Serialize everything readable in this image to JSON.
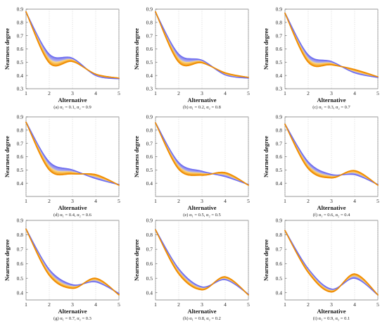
{
  "chart_data": [
    {
      "type": "line",
      "caption": "(a) α₁ = 0.1, α₂ = 0.9",
      "xlabel": "Alternative",
      "ylabel": "Nearness degree",
      "x": [
        1,
        2,
        3,
        4,
        5
      ],
      "xlim": [
        1,
        5
      ],
      "ylim": [
        0.3,
        0.9
      ],
      "yticks": [
        0.3,
        0.4,
        0.5,
        0.6,
        0.7,
        0.8,
        0.9
      ],
      "grid": true,
      "series": [
        {
          "values": [
            0.875,
            0.56,
            0.53,
            0.4,
            0.375
          ],
          "color": "#6d6df0"
        },
        {
          "values": [
            0.88,
            0.495,
            0.505,
            0.41,
            0.38
          ],
          "color": "#f08c00"
        }
      ]
    },
    {
      "type": "line",
      "caption": "(b) α₁ = 0.2, α₂ = 0.8",
      "xlabel": "Alternative",
      "ylabel": "Nearness degree",
      "x": [
        1,
        2,
        3,
        4,
        5
      ],
      "xlim": [
        1,
        5
      ],
      "ylim": [
        0.3,
        0.9
      ],
      "yticks": [
        0.3,
        0.4,
        0.5,
        0.6,
        0.7,
        0.8,
        0.9
      ],
      "grid": true,
      "series": [
        {
          "values": [
            0.875,
            0.56,
            0.515,
            0.405,
            0.38
          ],
          "color": "#6d6df0"
        },
        {
          "values": [
            0.88,
            0.5,
            0.495,
            0.42,
            0.385
          ],
          "color": "#f08c00"
        }
      ]
    },
    {
      "type": "line",
      "caption": "(c) α₁ = 0.3, α₂ = 0.7",
      "xlabel": "Alternative",
      "ylabel": "Nearness degree",
      "x": [
        1,
        2,
        3,
        4,
        5
      ],
      "xlim": [
        1,
        5
      ],
      "ylim": [
        0.3,
        0.9
      ],
      "yticks": [
        0.3,
        0.4,
        0.5,
        0.6,
        0.7,
        0.8,
        0.9
      ],
      "grid": true,
      "series": [
        {
          "values": [
            0.87,
            0.555,
            0.505,
            0.42,
            0.385
          ],
          "color": "#6d6df0"
        },
        {
          "values": [
            0.87,
            0.5,
            0.48,
            0.445,
            0.39
          ],
          "color": "#f08c00"
        }
      ]
    },
    {
      "type": "line",
      "caption": "(d) α₁ = 0.4, α₂ = 0.6",
      "xlabel": "Alternative",
      "ylabel": "Nearness degree",
      "x": [
        1,
        2,
        3,
        4,
        5
      ],
      "xlim": [
        1,
        5
      ],
      "ylim": [
        0.3,
        0.9
      ],
      "yticks": [
        0.4,
        0.5,
        0.6,
        0.7,
        0.8,
        0.9
      ],
      "grid": true,
      "series": [
        {
          "values": [
            0.86,
            0.56,
            0.5,
            0.435,
            0.39
          ],
          "color": "#6d6df0"
        },
        {
          "values": [
            0.86,
            0.5,
            0.47,
            0.465,
            0.385
          ],
          "color": "#f08c00"
        }
      ]
    },
    {
      "type": "line",
      "caption": "(e) α₁ = 0.5, α₂ = 0.5",
      "xlabel": "Alternative",
      "ylabel": "Nearness degree",
      "x": [
        1,
        2,
        3,
        4,
        5
      ],
      "xlim": [
        1,
        5
      ],
      "ylim": [
        0.3,
        0.9
      ],
      "yticks": [
        0.4,
        0.5,
        0.6,
        0.7,
        0.8,
        0.9
      ],
      "grid": true,
      "series": [
        {
          "values": [
            0.855,
            0.555,
            0.49,
            0.45,
            0.39
          ],
          "color": "#6d6df0"
        },
        {
          "values": [
            0.855,
            0.505,
            0.46,
            0.48,
            0.385
          ],
          "color": "#f08c00"
        }
      ]
    },
    {
      "type": "line",
      "caption": "(f) α₁ = 0.6, α₂ = 0.4",
      "xlabel": "Alternative",
      "ylabel": "Nearness degree",
      "x": [
        1,
        2,
        3,
        4,
        5
      ],
      "xlim": [
        1,
        5
      ],
      "ylim": [
        0.3,
        0.9
      ],
      "yticks": [
        0.4,
        0.5,
        0.6,
        0.7,
        0.8,
        0.9
      ],
      "grid": true,
      "series": [
        {
          "values": [
            0.845,
            0.56,
            0.465,
            0.465,
            0.39
          ],
          "color": "#6d6df0"
        },
        {
          "values": [
            0.845,
            0.51,
            0.44,
            0.495,
            0.385
          ],
          "color": "#f08c00"
        }
      ]
    },
    {
      "type": "line",
      "caption": "(g) α₁ = 0.7, α₂ = 0.3",
      "xlabel": "Alternative",
      "ylabel": "Nearness degree",
      "x": [
        1,
        2,
        3,
        4,
        5
      ],
      "xlim": [
        1,
        5
      ],
      "ylim": [
        0.35,
        0.9
      ],
      "yticks": [
        0.4,
        0.5,
        0.6,
        0.7,
        0.8,
        0.9
      ],
      "grid": true,
      "series": [
        {
          "values": [
            0.84,
            0.56,
            0.455,
            0.475,
            0.395
          ],
          "color": "#6d6df0"
        },
        {
          "values": [
            0.84,
            0.52,
            0.43,
            0.5,
            0.385
          ],
          "color": "#f08c00"
        }
      ]
    },
    {
      "type": "line",
      "caption": "(h) α₁ = 0.8, α₂ = 0.2",
      "xlabel": "Alternative",
      "ylabel": "Nearness degree",
      "x": [
        1,
        2,
        3,
        4,
        5
      ],
      "xlim": [
        1,
        5
      ],
      "ylim": [
        0.35,
        0.9
      ],
      "yticks": [
        0.4,
        0.5,
        0.6,
        0.7,
        0.8,
        0.9
      ],
      "grid": true,
      "series": [
        {
          "values": [
            0.835,
            0.565,
            0.44,
            0.49,
            0.39
          ],
          "color": "#6d6df0"
        },
        {
          "values": [
            0.835,
            0.53,
            0.42,
            0.51,
            0.385
          ],
          "color": "#f08c00"
        }
      ]
    },
    {
      "type": "line",
      "caption": "(i) α₁ = 0.9, α₂ = 0.1",
      "xlabel": "Alternative",
      "ylabel": "Nearness degree",
      "x": [
        1,
        2,
        3,
        4,
        5
      ],
      "xlim": [
        1,
        5
      ],
      "ylim": [
        0.35,
        0.9
      ],
      "yticks": [
        0.4,
        0.5,
        0.6,
        0.7,
        0.8,
        0.9
      ],
      "grid": true,
      "series": [
        {
          "values": [
            0.83,
            0.565,
            0.425,
            0.5,
            0.385
          ],
          "color": "#6d6df0"
        },
        {
          "values": [
            0.83,
            0.54,
            0.405,
            0.53,
            0.385
          ],
          "color": "#f08c00"
        }
      ]
    }
  ]
}
